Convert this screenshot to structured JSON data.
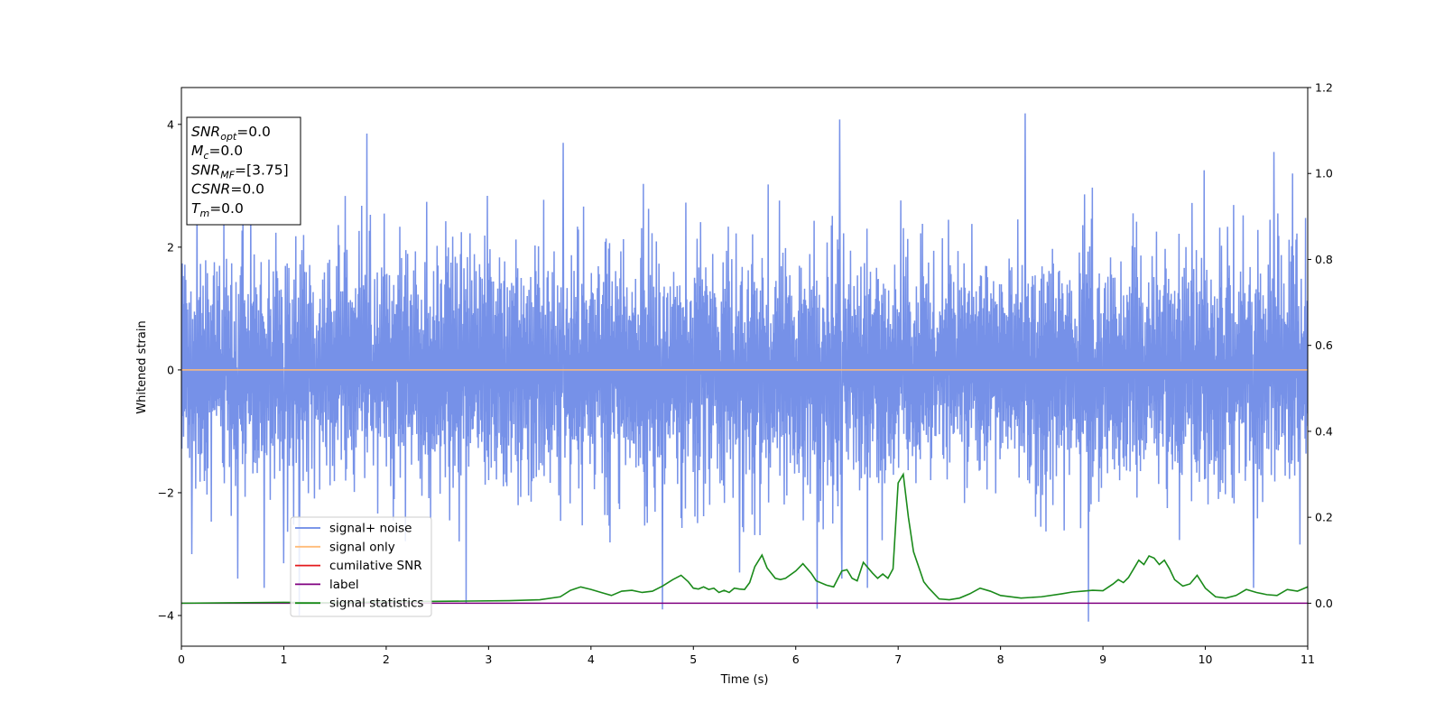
{
  "chart_data": {
    "type": "line",
    "xlabel": "Time (s)",
    "ylabel": "Whitened strain",
    "xlim": [
      0,
      11
    ],
    "ylim": [
      -4.5,
      4.6
    ],
    "y2lim": [
      -0.1,
      1.2
    ],
    "x_ticks": [
      "0",
      "1",
      "2",
      "3",
      "4",
      "5",
      "6",
      "7",
      "8",
      "9",
      "10",
      "11"
    ],
    "y_ticks": [
      "−4",
      "−2",
      "0",
      "2",
      "4"
    ],
    "y2_ticks": [
      "0.0",
      "0.2",
      "0.4",
      "0.6",
      "0.8",
      "1.0",
      "1.2"
    ],
    "legend_position": "lower-left",
    "info_box_position": "top-left",
    "series": [
      {
        "name": "signal+ noise",
        "color": "#6a88e6",
        "axis": "left",
        "style": "noise",
        "x_range": [
          0,
          11
        ],
        "approx_sigma": 1.0,
        "peaks": [
          [
            0.1,
            -3.0
          ],
          [
            0.55,
            -3.4
          ],
          [
            0.81,
            -3.55
          ],
          [
            1.0,
            -3.15
          ],
          [
            1.15,
            -4.0
          ],
          [
            1.81,
            3.85
          ],
          [
            2.78,
            -3.8
          ],
          [
            3.73,
            3.7
          ],
          [
            4.7,
            -3.9
          ],
          [
            5.45,
            -3.3
          ],
          [
            6.43,
            4.08
          ],
          [
            6.45,
            -3.4
          ],
          [
            6.7,
            -3.55
          ],
          [
            8.24,
            4.18
          ],
          [
            8.86,
            -4.1
          ],
          [
            10.47,
            -3.55
          ],
          [
            10.67,
            3.55
          ],
          [
            10.85,
            3.2
          ]
        ]
      },
      {
        "name": "signal only",
        "color": "#ffbb78",
        "axis": "left",
        "x": [
          0,
          11
        ],
        "y": [
          0,
          0
        ]
      },
      {
        "name": "cumilative SNR",
        "color": "#e41a1c",
        "axis": "right",
        "x": [],
        "y": []
      },
      {
        "name": "label",
        "color": "#800080",
        "axis": "right",
        "x": [
          0,
          11
        ],
        "y": [
          0,
          0
        ]
      },
      {
        "name": "signal statistics",
        "color": "#1a8a1a",
        "axis": "right",
        "x": [
          0,
          0.5,
          1.0,
          1.5,
          2.0,
          2.4,
          2.8,
          3.2,
          3.5,
          3.7,
          3.8,
          3.9,
          4.0,
          4.1,
          4.2,
          4.3,
          4.4,
          4.5,
          4.6,
          4.7,
          4.8,
          4.88,
          4.95,
          5.0,
          5.05,
          5.1,
          5.15,
          5.2,
          5.25,
          5.3,
          5.35,
          5.4,
          5.45,
          5.5,
          5.55,
          5.6,
          5.67,
          5.72,
          5.8,
          5.85,
          5.9,
          6.0,
          6.07,
          6.15,
          6.2,
          6.3,
          6.37,
          6.45,
          6.5,
          6.55,
          6.6,
          6.66,
          6.75,
          6.8,
          6.85,
          6.9,
          6.95,
          7.0,
          7.05,
          7.1,
          7.15,
          7.25,
          7.3,
          7.4,
          7.5,
          7.6,
          7.7,
          7.8,
          7.9,
          8.0,
          8.2,
          8.4,
          8.6,
          8.7,
          8.8,
          8.9,
          9.0,
          9.1,
          9.15,
          9.2,
          9.25,
          9.3,
          9.35,
          9.4,
          9.45,
          9.5,
          9.55,
          9.6,
          9.65,
          9.7,
          9.78,
          9.85,
          9.92,
          10.0,
          10.1,
          10.2,
          10.3,
          10.4,
          10.5,
          10.6,
          10.7,
          10.8,
          10.9,
          11.0
        ],
        "y": [
          0.0,
          0.001,
          0.002,
          0.001,
          0.003,
          0.004,
          0.005,
          0.006,
          0.008,
          0.015,
          0.03,
          0.038,
          0.032,
          0.025,
          0.018,
          0.028,
          0.03,
          0.025,
          0.028,
          0.04,
          0.055,
          0.065,
          0.05,
          0.035,
          0.033,
          0.038,
          0.032,
          0.035,
          0.025,
          0.03,
          0.025,
          0.035,
          0.033,
          0.032,
          0.048,
          0.085,
          0.112,
          0.082,
          0.058,
          0.055,
          0.058,
          0.075,
          0.092,
          0.07,
          0.052,
          0.042,
          0.038,
          0.075,
          0.078,
          0.058,
          0.052,
          0.095,
          0.07,
          0.058,
          0.068,
          0.058,
          0.08,
          0.28,
          0.3,
          0.2,
          0.12,
          0.05,
          0.035,
          0.01,
          0.008,
          0.012,
          0.022,
          0.035,
          0.028,
          0.018,
          0.012,
          0.015,
          0.022,
          0.026,
          0.028,
          0.03,
          0.029,
          0.045,
          0.055,
          0.048,
          0.06,
          0.08,
          0.1,
          0.09,
          0.11,
          0.105,
          0.09,
          0.1,
          0.08,
          0.055,
          0.04,
          0.045,
          0.065,
          0.035,
          0.015,
          0.012,
          0.018,
          0.032,
          0.025,
          0.02,
          0.018,
          0.032,
          0.028,
          0.038
        ]
      }
    ],
    "info_box": [
      {
        "base": "SNR",
        "sub": "opt",
        "value": "=0.0"
      },
      {
        "base": "M",
        "sub": "c",
        "value": "=0.0"
      },
      {
        "base": "SNR",
        "sub": "MF",
        "value": "=[3.75]"
      },
      {
        "base": "CSNR",
        "sub": "",
        "value": "=0.0"
      },
      {
        "base": "T",
        "sub": "m",
        "value": "=0.0"
      }
    ]
  }
}
